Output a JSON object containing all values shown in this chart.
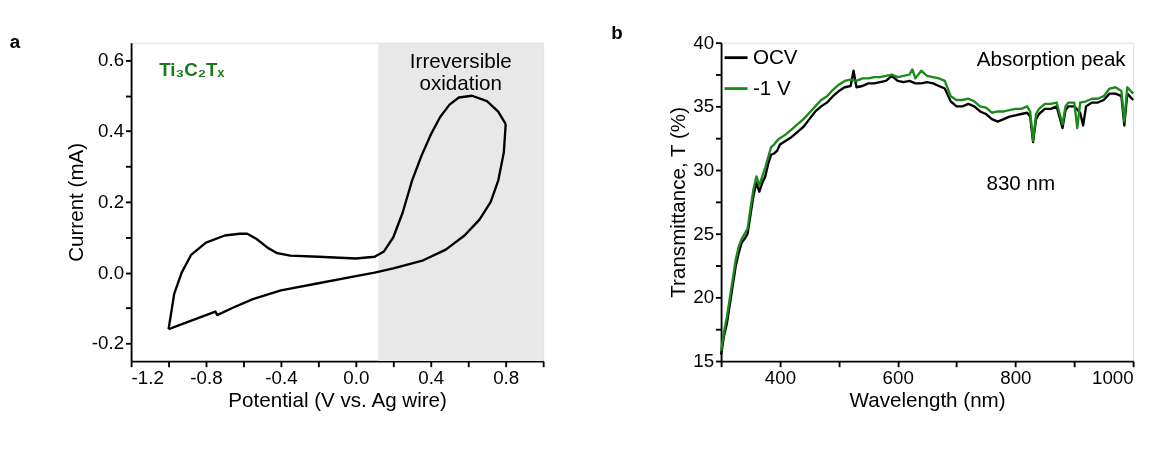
{
  "chart_data": [
    {
      "type": "line",
      "title": "a",
      "xlabel": "Potential (V vs. Ag wire)",
      "ylabel": "Current (mA)",
      "xlim": [
        -1.2,
        1.0
      ],
      "ylim": [
        -0.25,
        0.65
      ],
      "xticks": [
        -1.2,
        {
          "value": -1.0,
          "label": null
        },
        -0.8,
        {
          "value": -0.6,
          "label": null
        },
        -0.4,
        {
          "value": -0.2,
          "label": null
        },
        {
          "value": 0,
          "label": "0.0"
        },
        {
          "value": 0.2,
          "label": null
        },
        0.4,
        {
          "value": 0.6,
          "label": null
        },
        0.8,
        {
          "value": 1.0,
          "label": null
        }
      ],
      "yticks": [
        -0.2,
        {
          "value": -0.1,
          "label": null
        },
        {
          "value": 0,
          "label": "0.0"
        },
        {
          "value": 0.1,
          "label": null
        },
        0.2,
        {
          "value": 0.3,
          "label": null
        },
        0.4,
        {
          "value": 0.5,
          "label": null
        },
        0.6
      ],
      "grid": false,
      "legend": false,
      "line_style": "solid",
      "marker": "none",
      "series": [
        {
          "color": "#000000",
          "x": [
            -1.0,
            -0.97,
            -0.93,
            -0.88,
            -0.8,
            -0.7,
            -0.62,
            -0.58,
            -0.53,
            -0.47,
            -0.42,
            -0.35,
            -0.2,
            0.0,
            0.1,
            0.15,
            0.2,
            0.25,
            0.3,
            0.35,
            0.4,
            0.45,
            0.5,
            0.55,
            0.62,
            0.7,
            0.76,
            0.8
          ],
          "values": [
            -0.16,
            -0.06,
            0.0,
            0.05,
            0.085,
            0.105,
            0.11,
            0.11,
            0.095,
            0.07,
            0.055,
            0.048,
            0.045,
            0.04,
            0.045,
            0.06,
            0.1,
            0.17,
            0.26,
            0.33,
            0.39,
            0.44,
            0.475,
            0.495,
            0.5,
            0.485,
            0.455,
            0.42
          ]
        },
        {
          "color": "#000000",
          "x": [
            0.8,
            0.79,
            0.76,
            0.72,
            0.66,
            0.58,
            0.48,
            0.36,
            0.2,
            0.1,
            0.0,
            -0.2,
            -0.4,
            -0.55,
            -0.66,
            -0.74,
            -0.75,
            -0.85,
            -0.95,
            -1.0
          ],
          "values": [
            0.42,
            0.34,
            0.26,
            0.2,
            0.15,
            0.105,
            0.065,
            0.035,
            0.012,
            0.0,
            -0.01,
            -0.03,
            -0.05,
            -0.075,
            -0.1,
            -0.12,
            -0.11,
            -0.13,
            -0.15,
            -0.16
          ]
        }
      ],
      "bands": [
        {
          "axis": "x",
          "from": 0.12,
          "to": 1.0,
          "label": "Irreversible oxidation",
          "color": "#e8e8e8"
        }
      ],
      "annotations": [
        "Ti₃C₂Tₓ"
      ]
    },
    {
      "type": "line",
      "title": "b",
      "xlabel": "Wavelength (nm)",
      "ylabel": "Transmittance, T (%)",
      "xlim": [
        300,
        1000
      ],
      "ylim": [
        15,
        40
      ],
      "xticks": [
        {
          "value": 300,
          "label": null
        },
        400,
        {
          "value": 500,
          "label": null
        },
        600,
        {
          "value": 700,
          "label": null
        },
        800,
        {
          "value": 900,
          "label": null
        },
        1000
      ],
      "yticks": [
        15,
        {
          "value": 17.5,
          "label": null
        },
        20,
        {
          "value": 22.5,
          "label": null
        },
        25,
        {
          "value": 27.5,
          "label": null
        },
        30,
        {
          "value": 32.5,
          "label": null
        },
        35,
        {
          "value": 37.5,
          "label": null
        },
        40
      ],
      "grid": false,
      "legend": "top left",
      "line_style": "solid",
      "marker": "none",
      "series": [
        {
          "name": "OCV",
          "color": "#000000",
          "x": [
            300,
            305,
            310,
            315,
            320,
            325,
            330,
            335,
            340,
            345,
            350,
            355,
            360,
            365,
            370,
            375,
            380,
            385,
            390,
            395,
            400,
            410,
            420,
            430,
            440,
            450,
            460,
            470,
            480,
            490,
            500,
            510,
            520,
            525,
            530,
            540,
            550,
            560,
            570,
            580,
            590,
            600,
            610,
            620,
            630,
            640,
            650,
            660,
            670,
            680,
            690,
            700,
            710,
            720,
            730,
            740,
            750,
            760,
            770,
            780,
            790,
            800,
            810,
            820,
            825,
            830,
            835,
            840,
            850,
            860,
            870,
            880,
            885,
            890,
            900,
            910,
            915,
            920,
            930,
            940,
            950,
            960,
            970,
            980,
            985,
            990,
            1000
          ],
          "values": [
            15.5,
            17,
            18,
            19.5,
            21,
            22.5,
            23.5,
            24.3,
            24.6,
            25,
            26.5,
            28,
            29,
            28.3,
            29,
            29.5,
            30.5,
            31.2,
            31.3,
            31.5,
            32,
            32.3,
            32.6,
            33,
            33.4,
            34,
            34.6,
            35,
            35.3,
            35.8,
            36.2,
            36.5,
            36.6,
            37.8,
            36.5,
            36.6,
            36.8,
            36.8,
            36.9,
            37,
            37.4,
            37,
            36.9,
            37,
            36.8,
            36.8,
            36.9,
            36.8,
            36.6,
            36.4,
            35.4,
            35,
            35,
            35.2,
            35,
            34.6,
            34.4,
            34,
            33.8,
            34,
            34.2,
            34.3,
            34.4,
            34.5,
            34.2,
            32.2,
            34,
            34.4,
            34.8,
            34.8,
            35,
            33.3,
            34.7,
            35,
            35,
            34.5,
            33.5,
            35,
            35.3,
            35.3,
            35.5,
            36,
            36,
            35.8,
            33.5,
            36,
            35.5
          ]
        },
        {
          "name": "-1 V",
          "color": "#1a8a1a",
          "x": [
            300,
            305,
            310,
            315,
            320,
            325,
            330,
            335,
            340,
            345,
            350,
            355,
            360,
            365,
            370,
            375,
            380,
            385,
            390,
            395,
            400,
            410,
            420,
            430,
            440,
            450,
            460,
            470,
            480,
            490,
            500,
            510,
            520,
            530,
            540,
            550,
            560,
            570,
            580,
            590,
            600,
            610,
            620,
            625,
            630,
            640,
            650,
            660,
            670,
            680,
            690,
            700,
            710,
            720,
            730,
            740,
            750,
            760,
            770,
            780,
            790,
            800,
            810,
            820,
            825,
            830,
            835,
            840,
            850,
            860,
            870,
            880,
            885,
            890,
            900,
            905,
            910,
            920,
            930,
            940,
            950,
            960,
            970,
            980,
            985,
            990,
            1000
          ],
          "values": [
            15.8,
            17.3,
            18.5,
            20,
            21.5,
            23,
            24,
            24.6,
            25,
            25.4,
            27,
            28.5,
            29.5,
            28.8,
            29.5,
            30.2,
            31,
            31.8,
            32,
            32.3,
            32.5,
            32.8,
            33.2,
            33.6,
            34,
            34.5,
            35,
            35.5,
            35.8,
            36.3,
            36.7,
            37,
            37.1,
            37,
            37.2,
            37.2,
            37.3,
            37.3,
            37.4,
            37.5,
            37.3,
            37.4,
            37.5,
            37.9,
            37.2,
            37.8,
            37.4,
            37.3,
            37.2,
            37,
            35.8,
            35.5,
            35.5,
            35.6,
            35.4,
            35,
            34.9,
            34.5,
            34.6,
            34.6,
            34.7,
            34.8,
            34.8,
            35,
            34.6,
            32.3,
            34.4,
            34.8,
            35.2,
            35.2,
            35.3,
            33.6,
            35,
            35.3,
            35.3,
            33.3,
            35.3,
            35.4,
            35.6,
            35.6,
            35.8,
            36.4,
            36.5,
            36.2,
            33.8,
            36.5,
            36
          ]
        }
      ],
      "annotations": [
        "Absorption peak",
        "830 nm"
      ]
    }
  ]
}
